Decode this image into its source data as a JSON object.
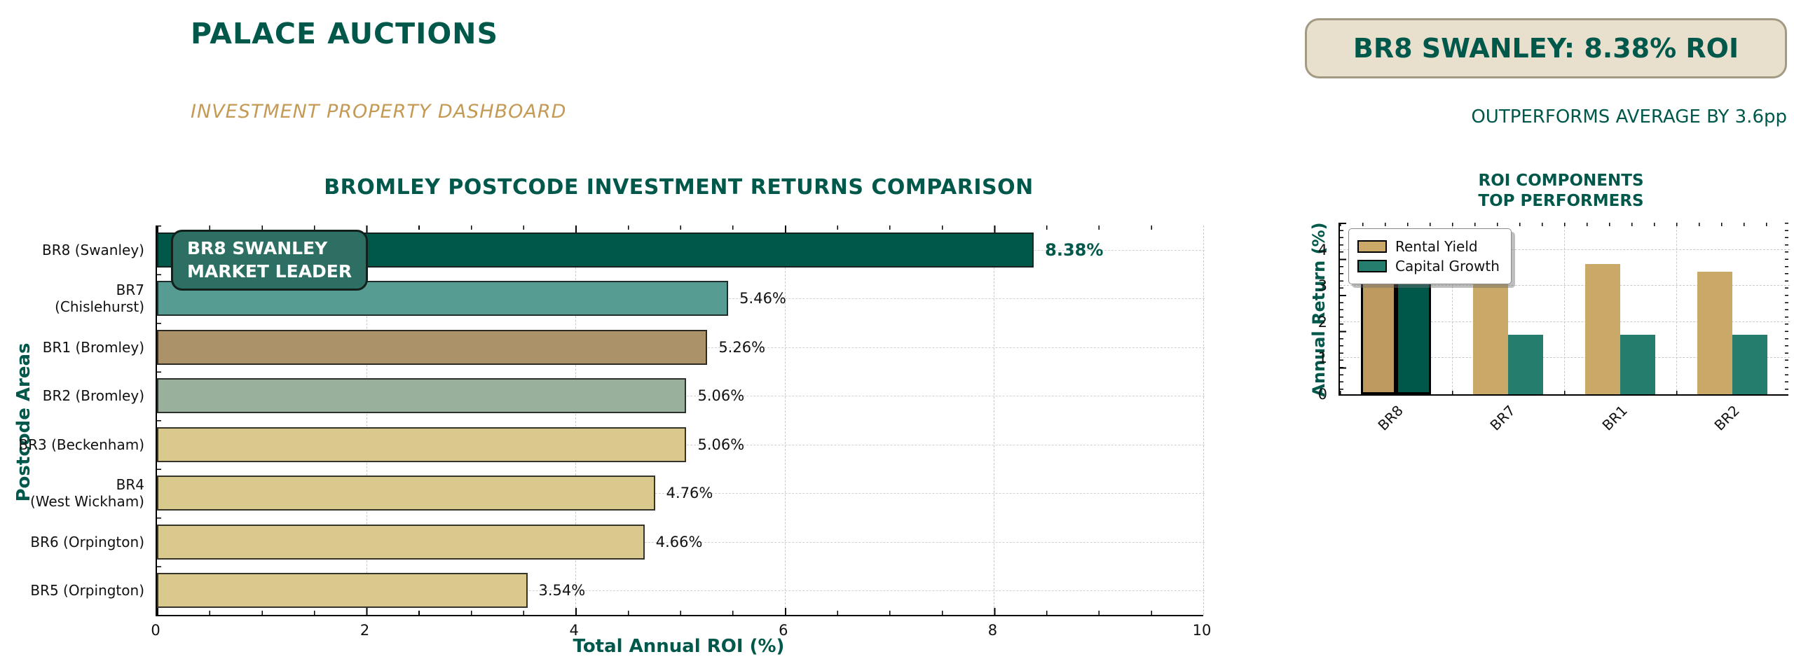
{
  "header": {
    "title": "PALACE AUCTIONS",
    "subtitle": "INVESTMENT PROPERTY DASHBOARD",
    "badge": "BR8 SWANLEY: 8.38% ROI",
    "badge_note": "OUTPERFORMS AVERAGE BY 3.6pp"
  },
  "colors": {
    "accent_teal": "#00584b",
    "accent_gold": "#c49a55",
    "badge_bg": "#e8e0cc",
    "badge_border": "#a39a84",
    "annotation_bg": "#2d6f63",
    "grid": "#c9c9c9"
  },
  "chart_data": [
    {
      "type": "bar",
      "orientation": "horizontal",
      "title": "BROMLEY POSTCODE INVESTMENT RETURNS COMPARISON",
      "xlabel": "Total Annual ROI (%)",
      "ylabel": "Postcode Areas",
      "xlim": [
        0,
        10
      ],
      "xticks": [
        0,
        2,
        4,
        6,
        8,
        10
      ],
      "grid": true,
      "categories": [
        "BR8 (Swanley)",
        "BR7\n(Chislehurst)",
        "BR1 (Bromley)",
        "BR2 (Bromley)",
        "BR3 (Beckenham)",
        "BR4\n(West Wickham)",
        "BR6 (Orpington)",
        "BR5 (Orpington)"
      ],
      "values": [
        8.38,
        5.46,
        5.26,
        5.06,
        5.06,
        4.76,
        4.66,
        3.54
      ],
      "value_labels": [
        "8.38%",
        "5.46%",
        "5.26%",
        "5.06%",
        "5.06%",
        "4.76%",
        "4.66%",
        "3.54%"
      ],
      "bar_colors": [
        "#00584b",
        "#579c93",
        "#ab9268",
        "#99b09c",
        "#d9c98d",
        "#d9c98d",
        "#d9c98d",
        "#d9c98d"
      ],
      "annotation": "BR8 SWANLEY\nMARKET LEADER"
    },
    {
      "type": "bar",
      "grouped": true,
      "title": "ROI COMPONENTS\nTOP PERFORMERS",
      "ylabel": "Annual Return (%)",
      "ylim": [
        0,
        4.75
      ],
      "yticks": [
        0,
        1,
        2,
        3,
        4
      ],
      "grid": true,
      "legend_position": "upper left",
      "categories": [
        "BR8",
        "BR7",
        "BR1",
        "BR2"
      ],
      "highlight_category": "BR8",
      "series": [
        {
          "name": "Rental Yield",
          "color": "#c9a868",
          "highlight_color": "#bf9a60",
          "values": [
            4.2,
            3.8,
            3.6,
            3.4
          ]
        },
        {
          "name": "Capital Growth",
          "color": "#257d6e",
          "highlight_color": "#00584b",
          "values": [
            4.18,
            1.65,
            1.65,
            1.65
          ]
        }
      ]
    }
  ]
}
